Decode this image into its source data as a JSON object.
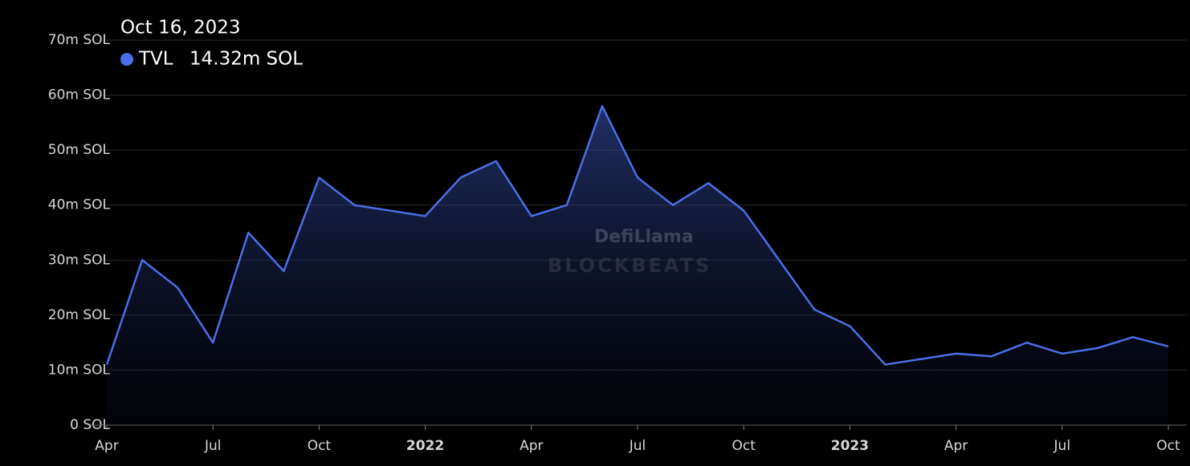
{
  "chart_data": {
    "type": "area",
    "x": [
      "2021-04",
      "2021-05",
      "2021-06",
      "2021-07",
      "2021-08",
      "2021-09",
      "2021-10",
      "2021-11",
      "2021-12",
      "2022-01",
      "2022-02",
      "2022-03",
      "2022-04",
      "2022-05",
      "2022-06",
      "2022-07",
      "2022-08",
      "2022-09",
      "2022-10",
      "2022-11",
      "2022-12",
      "2023-01",
      "2023-02",
      "2023-03",
      "2023-04",
      "2023-05",
      "2023-06",
      "2023-07",
      "2023-08",
      "2023-09",
      "2023-10"
    ],
    "series": [
      {
        "name": "TVL",
        "color": "#4a6fe8",
        "values": [
          11,
          30,
          25,
          15,
          35,
          28,
          45,
          40,
          39,
          38,
          45,
          48,
          38,
          40,
          58,
          45,
          40,
          44,
          39,
          30,
          21,
          18,
          11,
          12,
          13,
          12.5,
          15,
          13,
          14,
          16,
          14.32
        ]
      }
    ],
    "xlim": [
      "2021-04",
      "2023-10"
    ],
    "xticks": [
      {
        "value": "2021-04",
        "label": "Apr"
      },
      {
        "value": "2021-07",
        "label": "Jul"
      },
      {
        "value": "2021-10",
        "label": "Oct"
      },
      {
        "value": "2022-01",
        "label": "2022"
      },
      {
        "value": "2022-04",
        "label": "Apr"
      },
      {
        "value": "2022-07",
        "label": "Jul"
      },
      {
        "value": "2022-10",
        "label": "Oct"
      },
      {
        "value": "2023-01",
        "label": "2023"
      },
      {
        "value": "2023-04",
        "label": "Apr"
      },
      {
        "value": "2023-07",
        "label": "Jul"
      },
      {
        "value": "2023-10",
        "label": "Oct"
      }
    ],
    "ylim": [
      0,
      70
    ],
    "yticks": [
      {
        "value": 0,
        "label": "0 SOL"
      },
      {
        "value": 10,
        "label": "10m SOL"
      },
      {
        "value": 20,
        "label": "20m SOL"
      },
      {
        "value": 30,
        "label": "30m SOL"
      },
      {
        "value": 40,
        "label": "40m SOL"
      },
      {
        "value": 50,
        "label": "50m SOL"
      },
      {
        "value": 60,
        "label": "60m SOL"
      },
      {
        "value": 70,
        "label": "70m SOL"
      }
    ],
    "grid": true,
    "tooltip": {
      "date": "Oct 16, 2023",
      "label": "14.32m SOL"
    },
    "watermark": [
      "DefiLlama",
      "BLOCKBEATS"
    ]
  }
}
